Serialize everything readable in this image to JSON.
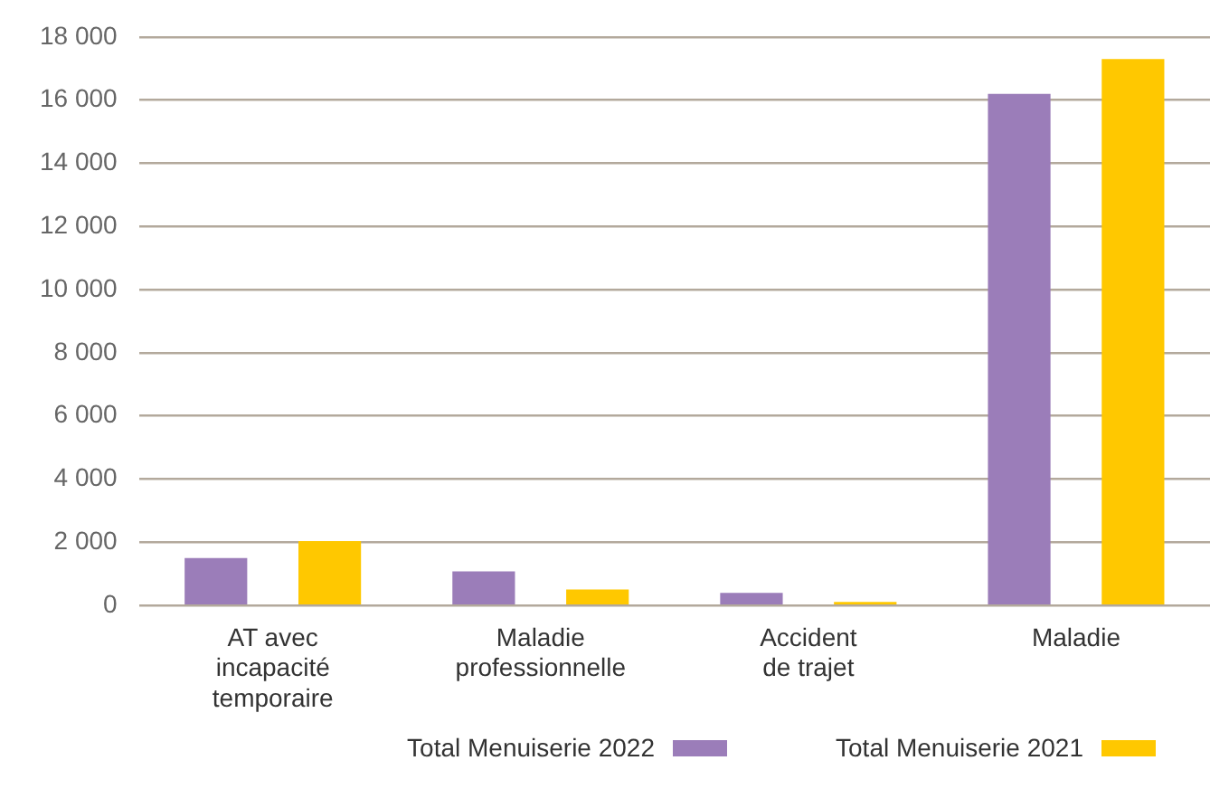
{
  "chart_data": {
    "type": "bar",
    "categories": [
      "AT avec incapacité temporaire",
      "Maladie professionnelle",
      "Accident de trajet",
      "Maladie"
    ],
    "series": [
      {
        "name": "Total Menuiserie 2022",
        "color": "#9b7db9",
        "values": [
          1500,
          1080,
          400,
          16200
        ]
      },
      {
        "name": "Total Menuiserie 2021",
        "color": "#ffc800",
        "values": [
          2040,
          510,
          110,
          17300
        ]
      }
    ],
    "ylim": [
      0,
      18000
    ],
    "yticks": [
      {
        "value": 0,
        "label": "0"
      },
      {
        "value": 2000,
        "label": "2 000"
      },
      {
        "value": 4000,
        "label": "4 000"
      },
      {
        "value": 6000,
        "label": "6 000"
      },
      {
        "value": 8000,
        "label": "8 000"
      },
      {
        "value": 10000,
        "label": "10 000"
      },
      {
        "value": 12000,
        "label": "12 000"
      },
      {
        "value": 14000,
        "label": "14 000"
      },
      {
        "value": 16000,
        "label": "16 000"
      },
      {
        "value": 18000,
        "label": "18 000"
      }
    ],
    "grid": "y",
    "legend": "bottom"
  }
}
